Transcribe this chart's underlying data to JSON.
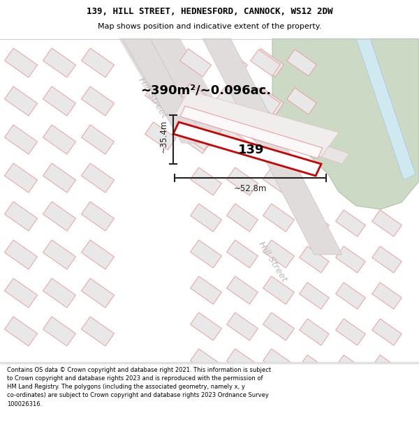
{
  "title_line1": "139, HILL STREET, HEDNESFORD, CANNOCK, WS12 2DW",
  "title_line2": "Map shows position and indicative extent of the property.",
  "footer_text": "Contains OS data © Crown copyright and database right 2021. This information is subject\nto Crown copyright and database rights 2023 and is reproduced with the permission of\nHM Land Registry. The polygons (including the associated geometry, namely x, y\nco-ordinates) are subject to Crown copyright and database rights 2023 Ordnance Survey\n100026316.",
  "area_label": "~390m²/~0.096ac.",
  "property_number": "139",
  "dim_vertical": "~35.4m",
  "dim_horizontal": "~52.8m",
  "street_label_upper": "Hill Street",
  "street_label_lower": "Hill Street",
  "map_bg": "#ffffff",
  "block_fill": "#e8e8e8",
  "block_stroke": "#e8a0a0",
  "road_gray_fill": "#e0dcdc",
  "road_gray_stroke": "#c8c0c0",
  "green_fill": "#ccd9c4",
  "green_stroke": "#b0c4a8",
  "river_fill": "#d0e8f0",
  "river_stroke": "#a0c8e0",
  "property_fill": "#ffffff",
  "property_stroke": "#cc0000",
  "neighbor_fill": "#f0f0f0",
  "neighbor_stroke": "#e8a0a0",
  "dim_color": "#222222",
  "street_color": "#c0baba",
  "title_bg": "#ffffff",
  "footer_bg": "#ffffff",
  "sep_color": "#cccccc",
  "title_font_size": 9.0,
  "subtitle_font_size": 8.0,
  "footer_font_size": 6.0,
  "area_font_size": 13.0,
  "num_font_size": 13.0,
  "dim_font_size": 8.5,
  "street_font_size": 9.5
}
